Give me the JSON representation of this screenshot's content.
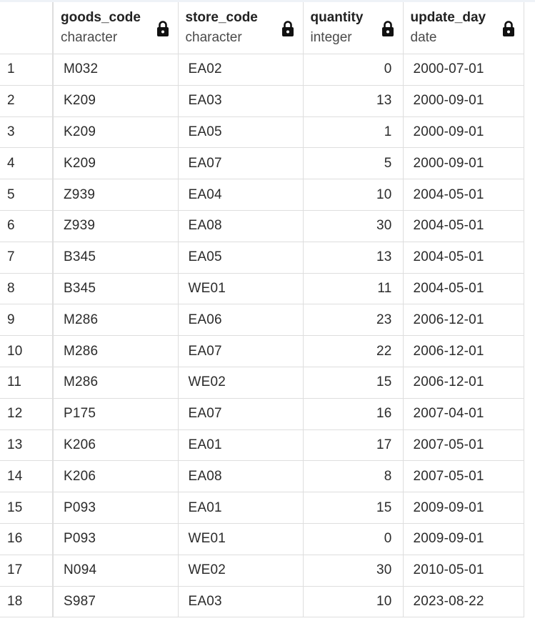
{
  "columns": [
    {
      "name": "goods_code",
      "type": "character"
    },
    {
      "name": "store_code",
      "type": "character"
    },
    {
      "name": "quantity",
      "type": "integer"
    },
    {
      "name": "update_day",
      "type": "date"
    }
  ],
  "rows": [
    {
      "n": "1",
      "goods_code": "M032",
      "store_code": "EA02",
      "quantity": "0",
      "update_day": "2000-07-01"
    },
    {
      "n": "2",
      "goods_code": "K209",
      "store_code": "EA03",
      "quantity": "13",
      "update_day": "2000-09-01"
    },
    {
      "n": "3",
      "goods_code": "K209",
      "store_code": "EA05",
      "quantity": "1",
      "update_day": "2000-09-01"
    },
    {
      "n": "4",
      "goods_code": "K209",
      "store_code": "EA07",
      "quantity": "5",
      "update_day": "2000-09-01"
    },
    {
      "n": "5",
      "goods_code": "Z939",
      "store_code": "EA04",
      "quantity": "10",
      "update_day": "2004-05-01"
    },
    {
      "n": "6",
      "goods_code": "Z939",
      "store_code": "EA08",
      "quantity": "30",
      "update_day": "2004-05-01"
    },
    {
      "n": "7",
      "goods_code": "B345",
      "store_code": "EA05",
      "quantity": "13",
      "update_day": "2004-05-01"
    },
    {
      "n": "8",
      "goods_code": "B345",
      "store_code": "WE01",
      "quantity": "11",
      "update_day": "2004-05-01"
    },
    {
      "n": "9",
      "goods_code": "M286",
      "store_code": "EA06",
      "quantity": "23",
      "update_day": "2006-12-01"
    },
    {
      "n": "10",
      "goods_code": "M286",
      "store_code": "EA07",
      "quantity": "22",
      "update_day": "2006-12-01"
    },
    {
      "n": "11",
      "goods_code": "M286",
      "store_code": "WE02",
      "quantity": "15",
      "update_day": "2006-12-01"
    },
    {
      "n": "12",
      "goods_code": "P175",
      "store_code": "EA07",
      "quantity": "16",
      "update_day": "2007-04-01"
    },
    {
      "n": "13",
      "goods_code": "K206",
      "store_code": "EA01",
      "quantity": "17",
      "update_day": "2007-05-01"
    },
    {
      "n": "14",
      "goods_code": "K206",
      "store_code": "EA08",
      "quantity": "8",
      "update_day": "2007-05-01"
    },
    {
      "n": "15",
      "goods_code": "P093",
      "store_code": "EA01",
      "quantity": "15",
      "update_day": "2009-09-01"
    },
    {
      "n": "16",
      "goods_code": "P093",
      "store_code": "WE01",
      "quantity": "0",
      "update_day": "2009-09-01"
    },
    {
      "n": "17",
      "goods_code": "N094",
      "store_code": "WE02",
      "quantity": "30",
      "update_day": "2010-05-01"
    },
    {
      "n": "18",
      "goods_code": "S987",
      "store_code": "EA03",
      "quantity": "10",
      "update_day": "2023-08-22"
    }
  ],
  "icons": {
    "column_lock": "lock-icon"
  },
  "colors": {
    "border": "#dedede",
    "text": "#222222",
    "subtext": "#4a4a4a"
  }
}
